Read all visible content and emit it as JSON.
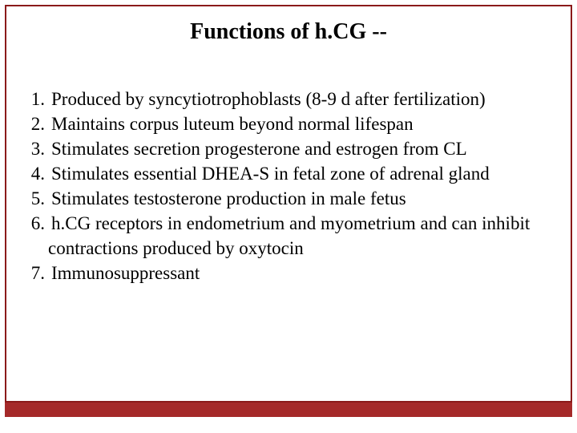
{
  "slide": {
    "title": "Functions of h.CG --",
    "items": [
      "Produced by syncytiotrophoblasts (8-9 d after fertilization)",
      "Maintains corpus luteum beyond normal lifespan",
      "Stimulates secretion progesterone and estrogen from CL",
      "Stimulates essential DHEA-S in fetal zone of adrenal gland",
      "Stimulates testosterone production in male fetus",
      "h.CG receptors in endometrium and myometrium and can inhibit contractions produced by oxytocin",
      "Immunosuppressant"
    ]
  },
  "style": {
    "border_color": "#8b1a1a",
    "accent_bar_color": "#a52929",
    "background_color": "#ffffff",
    "title_fontsize": 28,
    "body_fontsize": 23,
    "font_family": "Times New Roman"
  }
}
